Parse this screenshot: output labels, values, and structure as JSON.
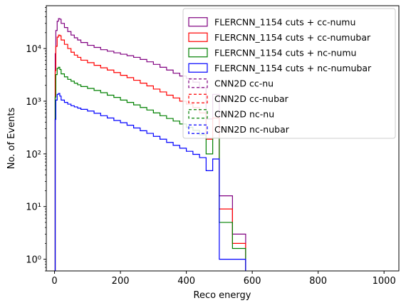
{
  "chart_data": {
    "type": "histogram",
    "xlabel": "Reco energy",
    "ylabel": "No. of Events",
    "xlim": [
      -25,
      1045
    ],
    "ylim": [
      0.6,
      65000
    ],
    "yscale": "log",
    "x_ticks": [
      0,
      200,
      400,
      600,
      800,
      1000
    ],
    "y_ticks": [
      {
        "value": 1,
        "label": "10⁰"
      },
      {
        "value": 10,
        "label": "10¹"
      },
      {
        "value": 100,
        "label": "10²"
      },
      {
        "value": 1000,
        "label": "10³"
      },
      {
        "value": 10000,
        "label": "10⁴"
      }
    ],
    "legend_position": "top-right",
    "series": [
      {
        "name": "FLERCNN_1154 cuts + cc-numu",
        "color": "#800080",
        "style": "solid",
        "bins": [
          [
            0,
            2,
            0.6
          ],
          [
            2,
            4,
            8000
          ],
          [
            4,
            8,
            22000
          ],
          [
            8,
            12,
            33000
          ],
          [
            12,
            16,
            37000
          ],
          [
            16,
            20,
            36000
          ],
          [
            20,
            30,
            30000
          ],
          [
            30,
            40,
            25000
          ],
          [
            40,
            50,
            21000
          ],
          [
            50,
            60,
            18000
          ],
          [
            60,
            70,
            16000
          ],
          [
            70,
            80,
            14500
          ],
          [
            80,
            100,
            13000
          ],
          [
            100,
            120,
            11500
          ],
          [
            120,
            140,
            10500
          ],
          [
            140,
            160,
            9500
          ],
          [
            160,
            180,
            8900
          ],
          [
            180,
            200,
            8300
          ],
          [
            200,
            220,
            7800
          ],
          [
            220,
            240,
            7300
          ],
          [
            240,
            260,
            6800
          ],
          [
            260,
            280,
            6200
          ],
          [
            280,
            300,
            5600
          ],
          [
            300,
            320,
            5000
          ],
          [
            320,
            340,
            4400
          ],
          [
            340,
            360,
            3900
          ],
          [
            360,
            380,
            3400
          ],
          [
            380,
            400,
            3000
          ],
          [
            400,
            420,
            2700
          ],
          [
            420,
            440,
            2300
          ],
          [
            440,
            460,
            1800
          ],
          [
            460,
            480,
            460
          ],
          [
            480,
            500,
            1350
          ],
          [
            500,
            540,
            16
          ],
          [
            540,
            580,
            3
          ]
        ]
      },
      {
        "name": "FLERCNN_1154 cuts + cc-numubar",
        "color": "#ff0000",
        "style": "solid",
        "bins": [
          [
            0,
            2,
            0.6
          ],
          [
            2,
            4,
            3800
          ],
          [
            4,
            8,
            11000
          ],
          [
            8,
            12,
            16500
          ],
          [
            12,
            16,
            18000
          ],
          [
            16,
            20,
            17500
          ],
          [
            20,
            30,
            14500
          ],
          [
            30,
            40,
            12000
          ],
          [
            40,
            50,
            10000
          ],
          [
            50,
            60,
            8500
          ],
          [
            60,
            70,
            7500
          ],
          [
            70,
            80,
            6800
          ],
          [
            80,
            100,
            6000
          ],
          [
            100,
            120,
            5400
          ],
          [
            120,
            140,
            4800
          ],
          [
            140,
            160,
            4300
          ],
          [
            160,
            180,
            3900
          ],
          [
            180,
            200,
            3500
          ],
          [
            200,
            220,
            3100
          ],
          [
            220,
            240,
            2800
          ],
          [
            240,
            260,
            2500
          ],
          [
            260,
            280,
            2200
          ],
          [
            280,
            300,
            1950
          ],
          [
            300,
            320,
            1700
          ],
          [
            320,
            340,
            1500
          ],
          [
            340,
            360,
            1300
          ],
          [
            360,
            380,
            1150
          ],
          [
            380,
            400,
            1000
          ],
          [
            400,
            420,
            880
          ],
          [
            420,
            440,
            760
          ],
          [
            440,
            460,
            600
          ],
          [
            460,
            480,
            190
          ],
          [
            480,
            500,
            480
          ],
          [
            500,
            540,
            9
          ],
          [
            540,
            580,
            2
          ]
        ]
      },
      {
        "name": "FLERCNN_1154 cuts + nc-numu",
        "color": "#008000",
        "style": "solid",
        "bins": [
          [
            0,
            2,
            0.6
          ],
          [
            2,
            4,
            1200
          ],
          [
            4,
            8,
            3200
          ],
          [
            8,
            12,
            4200
          ],
          [
            12,
            16,
            4400
          ],
          [
            16,
            20,
            4000
          ],
          [
            20,
            30,
            3300
          ],
          [
            30,
            40,
            2900
          ],
          [
            40,
            50,
            2600
          ],
          [
            50,
            60,
            2400
          ],
          [
            60,
            70,
            2200
          ],
          [
            70,
            80,
            2050
          ],
          [
            80,
            100,
            1900
          ],
          [
            100,
            120,
            1750
          ],
          [
            120,
            140,
            1600
          ],
          [
            140,
            160,
            1450
          ],
          [
            160,
            180,
            1300
          ],
          [
            180,
            200,
            1180
          ],
          [
            200,
            220,
            1050
          ],
          [
            220,
            240,
            950
          ],
          [
            240,
            260,
            850
          ],
          [
            260,
            280,
            760
          ],
          [
            280,
            300,
            680
          ],
          [
            300,
            320,
            600
          ],
          [
            320,
            340,
            530
          ],
          [
            340,
            360,
            470
          ],
          [
            360,
            380,
            420
          ],
          [
            380,
            400,
            370
          ],
          [
            400,
            420,
            320
          ],
          [
            420,
            440,
            280
          ],
          [
            440,
            460,
            230
          ],
          [
            460,
            480,
            100
          ],
          [
            480,
            500,
            200
          ],
          [
            500,
            540,
            5
          ],
          [
            540,
            580,
            1.6
          ]
        ]
      },
      {
        "name": "FLERCNN_1154 cuts + nc-numubar",
        "color": "#0000ff",
        "style": "solid",
        "bins": [
          [
            0,
            2,
            0.6
          ],
          [
            2,
            4,
            450
          ],
          [
            4,
            8,
            1050
          ],
          [
            8,
            12,
            1350
          ],
          [
            12,
            16,
            1400
          ],
          [
            16,
            20,
            1250
          ],
          [
            20,
            30,
            1050
          ],
          [
            30,
            40,
            950
          ],
          [
            40,
            50,
            880
          ],
          [
            50,
            60,
            820
          ],
          [
            60,
            70,
            780
          ],
          [
            70,
            80,
            740
          ],
          [
            80,
            100,
            700
          ],
          [
            100,
            120,
            650
          ],
          [
            120,
            140,
            590
          ],
          [
            140,
            160,
            530
          ],
          [
            160,
            180,
            480
          ],
          [
            180,
            200,
            430
          ],
          [
            200,
            220,
            390
          ],
          [
            220,
            240,
            350
          ],
          [
            240,
            260,
            310
          ],
          [
            260,
            280,
            275
          ],
          [
            280,
            300,
            245
          ],
          [
            300,
            320,
            215
          ],
          [
            320,
            340,
            190
          ],
          [
            340,
            360,
            165
          ],
          [
            360,
            380,
            145
          ],
          [
            380,
            400,
            128
          ],
          [
            400,
            420,
            112
          ],
          [
            420,
            440,
            98
          ],
          [
            440,
            460,
            85
          ],
          [
            460,
            480,
            48
          ],
          [
            480,
            500,
            80
          ],
          [
            500,
            540,
            1
          ],
          [
            540,
            580,
            1
          ]
        ]
      },
      {
        "name": "CNN2D cc-nu",
        "color": "#800080",
        "style": "dashed",
        "bins": []
      },
      {
        "name": "CNN2D cc-nubar",
        "color": "#ff0000",
        "style": "dashed",
        "bins": []
      },
      {
        "name": "CNN2D nc-nu",
        "color": "#008000",
        "style": "dashed",
        "bins": []
      },
      {
        "name": "CNN2D nc-nubar",
        "color": "#0000ff",
        "style": "dashed",
        "bins": []
      }
    ]
  }
}
